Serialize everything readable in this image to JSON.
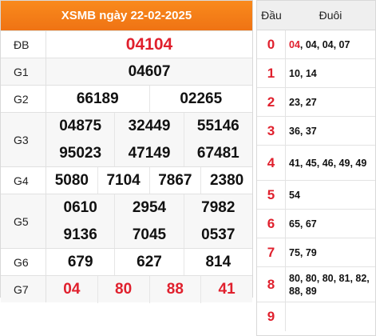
{
  "results": {
    "title": "XSMB ngày 22-02-2025",
    "prizes": [
      {
        "label": "ĐB",
        "rows": [
          [
            "04104"
          ]
        ]
      },
      {
        "label": "G1",
        "rows": [
          [
            "04607"
          ]
        ]
      },
      {
        "label": "G2",
        "rows": [
          [
            "66189",
            "02265"
          ]
        ]
      },
      {
        "label": "G3",
        "rows": [
          [
            "04875",
            "32449",
            "55146"
          ],
          [
            "95023",
            "47149",
            "67481"
          ]
        ]
      },
      {
        "label": "G4",
        "rows": [
          [
            "5080",
            "7104",
            "7867",
            "2380"
          ]
        ]
      },
      {
        "label": "G5",
        "rows": [
          [
            "0610",
            "2954",
            "7982"
          ],
          [
            "9136",
            "7045",
            "0537"
          ]
        ]
      },
      {
        "label": "G6",
        "rows": [
          [
            "679",
            "627",
            "814"
          ]
        ]
      },
      {
        "label": "G7",
        "rows": [
          [
            "04",
            "80",
            "88",
            "41"
          ]
        ]
      }
    ],
    "accent_color": "#e0202d",
    "header_color": "#f5801a"
  },
  "dauduoi": {
    "head_label": "Đầu",
    "tail_label": "Đuôi",
    "rows": [
      {
        "dau": "0",
        "duoi_first": "04",
        "duoi_rest": ", 04, 04, 07"
      },
      {
        "dau": "1",
        "duoi_first": "",
        "duoi_rest": "10, 14"
      },
      {
        "dau": "2",
        "duoi_first": "",
        "duoi_rest": "23, 27"
      },
      {
        "dau": "3",
        "duoi_first": "",
        "duoi_rest": "36, 37"
      },
      {
        "dau": "4",
        "duoi_first": "",
        "duoi_rest": "41, 45, 46, 49, 49"
      },
      {
        "dau": "5",
        "duoi_first": "",
        "duoi_rest": "54"
      },
      {
        "dau": "6",
        "duoi_first": "",
        "duoi_rest": "65, 67"
      },
      {
        "dau": "7",
        "duoi_first": "",
        "duoi_rest": "75, 79"
      },
      {
        "dau": "8",
        "duoi_first": "",
        "duoi_rest": "80, 80, 80, 81, 82, 88, 89"
      },
      {
        "dau": "9",
        "duoi_first": "",
        "duoi_rest": ""
      }
    ]
  }
}
